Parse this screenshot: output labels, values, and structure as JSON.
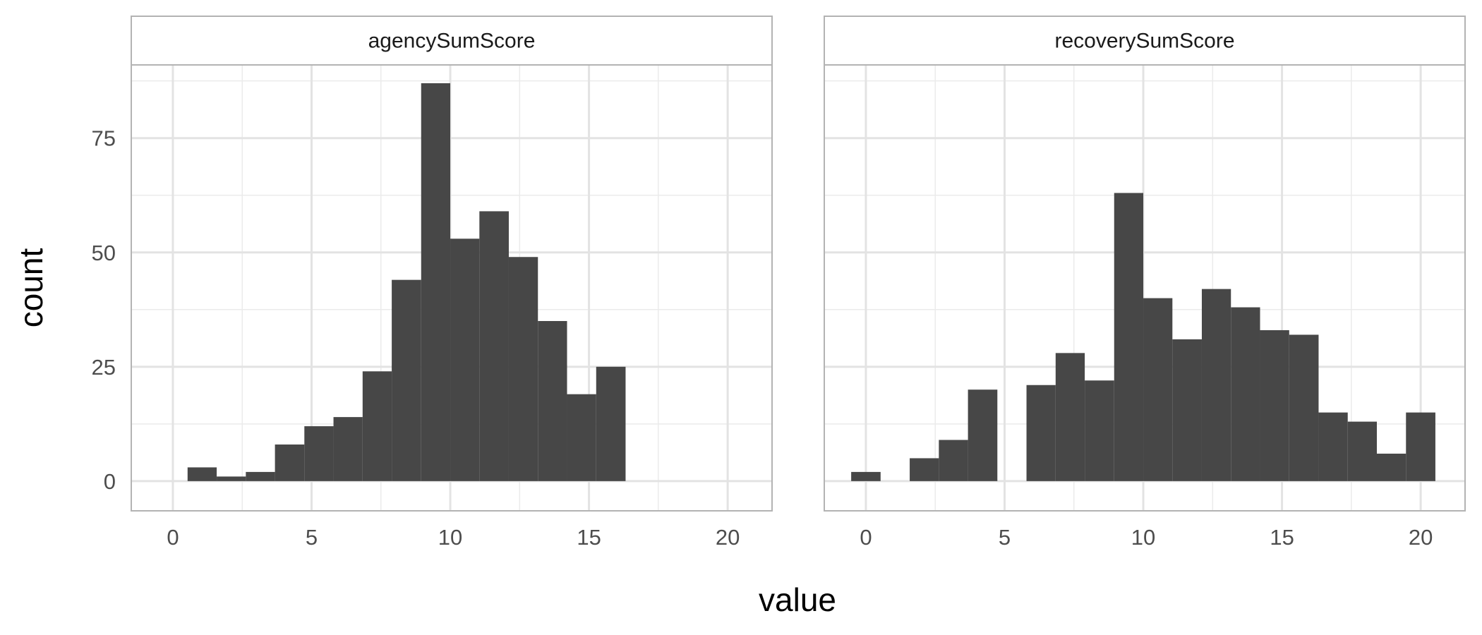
{
  "chart_data": {
    "type": "bar",
    "xlabel": "value",
    "ylabel": "count",
    "xlim": [
      -1.5,
      21.6
    ],
    "ylim": [
      -6.5,
      91
    ],
    "x_ticks": [
      0,
      5,
      10,
      15,
      20
    ],
    "y_ticks": [
      0,
      25,
      50,
      75
    ],
    "grid": true,
    "bar_color": "#474747",
    "panels": [
      {
        "name": "agencySumScore",
        "bins": [
          {
            "x0": 0.53,
            "x1": 1.58,
            "count": 3
          },
          {
            "x0": 1.58,
            "x1": 2.63,
            "count": 1
          },
          {
            "x0": 2.63,
            "x1": 3.68,
            "count": 2
          },
          {
            "x0": 3.68,
            "x1": 4.74,
            "count": 8
          },
          {
            "x0": 4.74,
            "x1": 5.79,
            "count": 12
          },
          {
            "x0": 5.79,
            "x1": 6.84,
            "count": 14
          },
          {
            "x0": 6.84,
            "x1": 7.89,
            "count": 24
          },
          {
            "x0": 7.89,
            "x1": 8.95,
            "count": 44
          },
          {
            "x0": 8.95,
            "x1": 10.0,
            "count": 87
          },
          {
            "x0": 10.0,
            "x1": 11.05,
            "count": 53
          },
          {
            "x0": 11.05,
            "x1": 12.11,
            "count": 59
          },
          {
            "x0": 12.11,
            "x1": 13.16,
            "count": 49
          },
          {
            "x0": 13.16,
            "x1": 14.21,
            "count": 35
          },
          {
            "x0": 14.21,
            "x1": 15.26,
            "count": 19
          },
          {
            "x0": 15.26,
            "x1": 16.32,
            "count": 25
          }
        ]
      },
      {
        "name": "recoverySumScore",
        "bins": [
          {
            "x0": -0.53,
            "x1": 0.53,
            "count": 2
          },
          {
            "x0": 0.53,
            "x1": 1.58,
            "count": 0
          },
          {
            "x0": 1.58,
            "x1": 2.63,
            "count": 5
          },
          {
            "x0": 2.63,
            "x1": 3.68,
            "count": 9
          },
          {
            "x0": 3.68,
            "x1": 4.74,
            "count": 20
          },
          {
            "x0": 4.74,
            "x1": 5.79,
            "count": 0
          },
          {
            "x0": 5.79,
            "x1": 6.84,
            "count": 21
          },
          {
            "x0": 6.84,
            "x1": 7.89,
            "count": 28
          },
          {
            "x0": 7.89,
            "x1": 8.95,
            "count": 22
          },
          {
            "x0": 8.95,
            "x1": 10.0,
            "count": 63
          },
          {
            "x0": 10.0,
            "x1": 11.05,
            "count": 40
          },
          {
            "x0": 11.05,
            "x1": 12.11,
            "count": 31
          },
          {
            "x0": 12.11,
            "x1": 13.16,
            "count": 42
          },
          {
            "x0": 13.16,
            "x1": 14.21,
            "count": 38
          },
          {
            "x0": 14.21,
            "x1": 15.26,
            "count": 33
          },
          {
            "x0": 15.26,
            "x1": 16.32,
            "count": 32
          },
          {
            "x0": 16.32,
            "x1": 17.37,
            "count": 15
          },
          {
            "x0": 17.37,
            "x1": 18.42,
            "count": 13
          },
          {
            "x0": 18.42,
            "x1": 19.47,
            "count": 6
          },
          {
            "x0": 19.47,
            "x1": 20.53,
            "count": 15
          }
        ]
      }
    ]
  }
}
